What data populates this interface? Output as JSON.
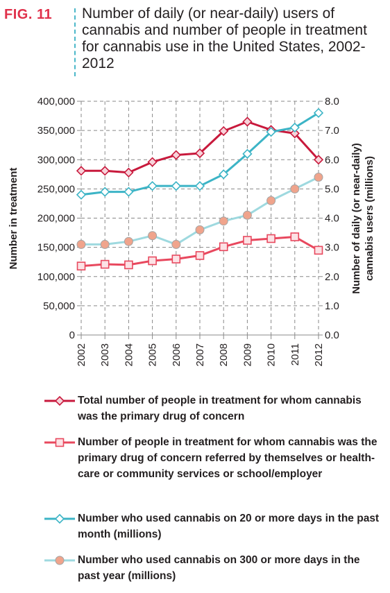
{
  "figure": {
    "label": "FIG. 11",
    "title": "Number of daily (or near-daily) users of cannabis and number of people in treatment for cannabis use in the United States, 2002-2012"
  },
  "colors": {
    "total_treatment": "#c8193c",
    "referred_treatment": "#e8485e",
    "monthly_users": "#3cb4c6",
    "yearly_users": "#9ed9df",
    "yearly_marker_fill": "#f0a48c",
    "grid": "#888888"
  },
  "chart_data": {
    "type": "line",
    "title": "Number of daily (or near-daily) users of cannabis and number of people in treatment for cannabis use in the United States, 2002-2012",
    "xlabel": "",
    "ylabel": "Number in treatment",
    "y2label": "Number of daily (or near-daily) cannabis users (millions)",
    "ylim": [
      0,
      400000
    ],
    "y2lim": [
      0,
      8.0
    ],
    "yticks": [
      "0",
      "50,000",
      "100,000",
      "150,000",
      "200,000",
      "250,000",
      "300,000",
      "350,000",
      "400,000"
    ],
    "y2ticks": [
      "0.0",
      "1.0",
      "2.0",
      "3.0",
      "4.0",
      "5.0",
      "6.0",
      "7.0",
      "8.0"
    ],
    "categories": [
      "2002",
      "2003",
      "2004",
      "2005",
      "2006",
      "2007",
      "2008",
      "2009",
      "2010",
      "2011",
      "2012"
    ],
    "grid": true,
    "legend_position": "bottom",
    "series": [
      {
        "name": "Total number of people in treatment for whom cannabis was the primary drug of concern",
        "axis": "left",
        "marker": "diamond",
        "values": [
          281000,
          281000,
          278000,
          296000,
          308000,
          311000,
          349000,
          365000,
          351000,
          345000,
          300000
        ]
      },
      {
        "name": "Number of people in treatment for whom cannabis was the primary drug of concern referred by themselves or health-care or community services or school/employer",
        "axis": "left",
        "marker": "square",
        "values": [
          118000,
          121000,
          120000,
          127000,
          130000,
          136000,
          151000,
          162000,
          165000,
          168000,
          145000
        ]
      },
      {
        "name": "Number who used cannabis on 20 or more days in the past month (millions)",
        "axis": "right",
        "marker": "diamond-open",
        "values": [
          4.8,
          4.9,
          4.9,
          5.1,
          5.1,
          5.1,
          5.5,
          6.2,
          6.95,
          7.1,
          7.6
        ]
      },
      {
        "name": "Number who used cannabis on 300 or more days in the past year (millions)",
        "axis": "right",
        "marker": "circle",
        "values": [
          3.1,
          3.1,
          3.2,
          3.4,
          3.1,
          3.6,
          3.9,
          4.1,
          4.6,
          5.0,
          5.4
        ]
      }
    ]
  }
}
